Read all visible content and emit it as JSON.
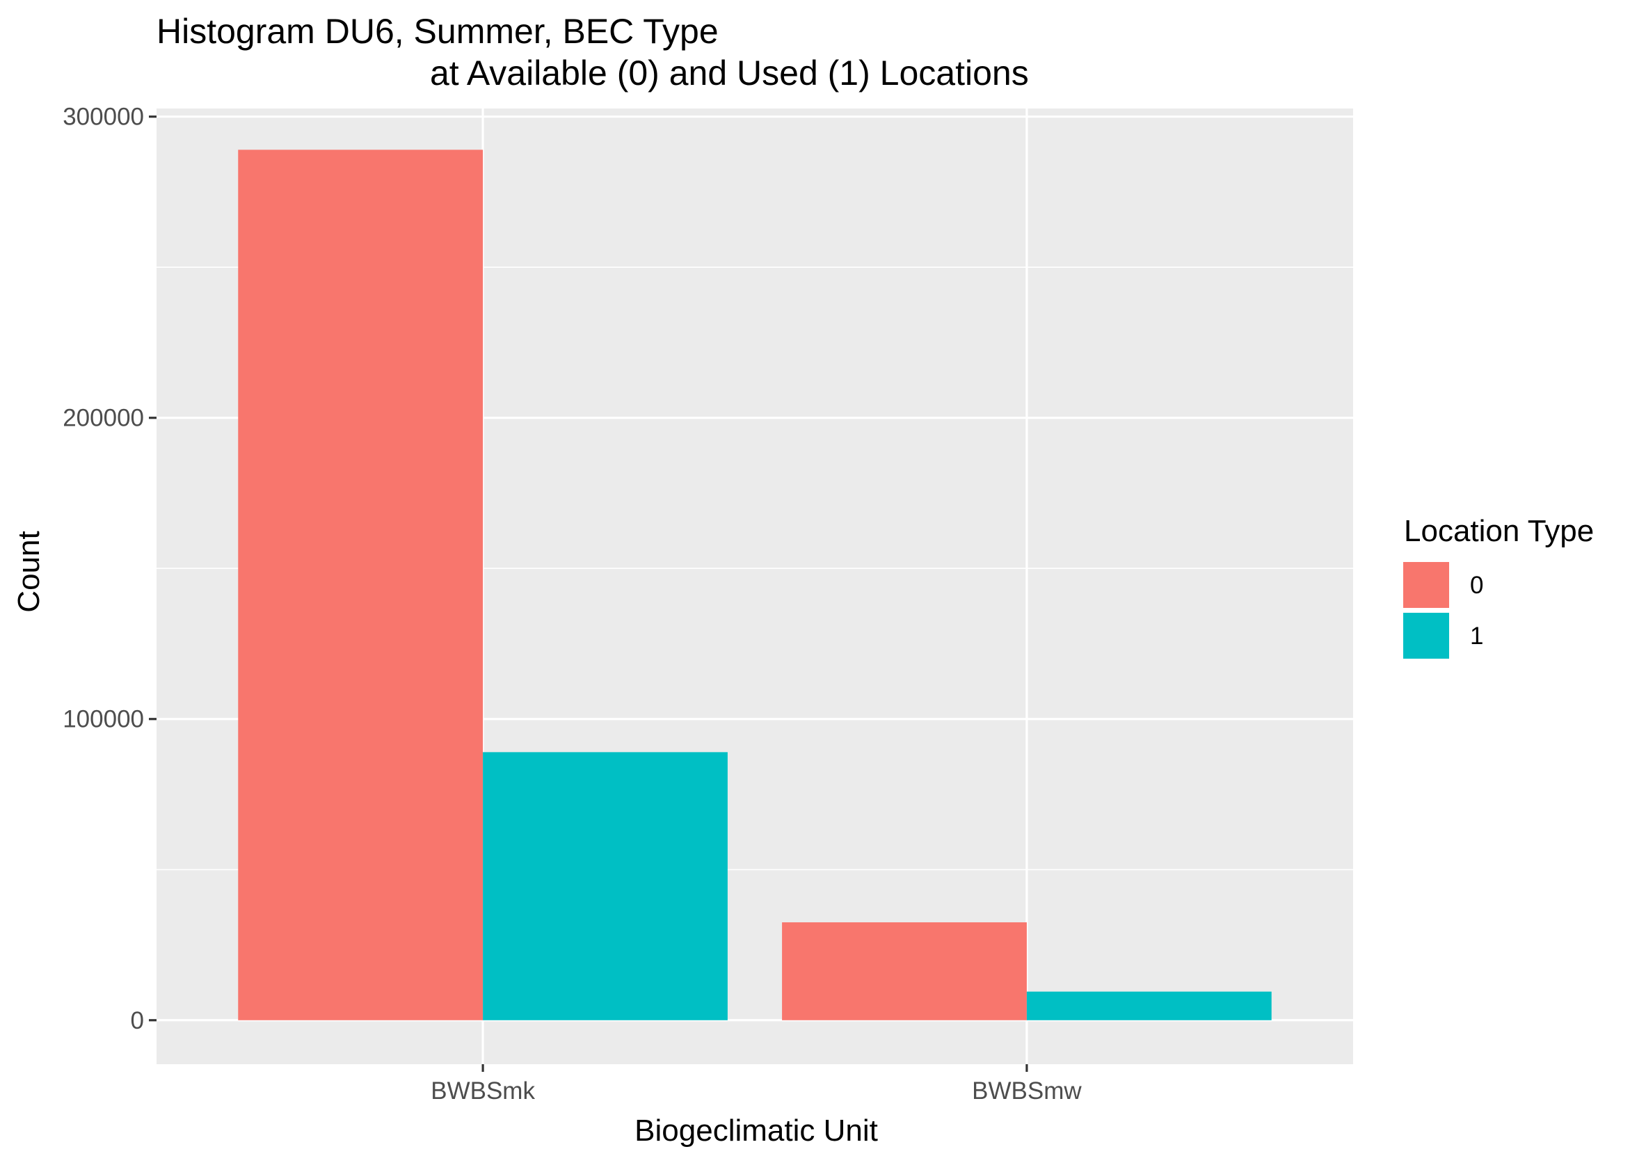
{
  "chart_data": {
    "type": "bar",
    "title_line1": "Histogram DU6, Summer, BEC Type",
    "title_line2": "at Available (0) and Used (1) Locations",
    "xlabel": "Biogeclimatic Unit",
    "ylabel": "Count",
    "categories": [
      "BWBSmk",
      "BWBSmw"
    ],
    "series": [
      {
        "name": "0",
        "values": [
          289000,
          32500
        ]
      },
      {
        "name": "1",
        "values": [
          89000,
          9500
        ]
      }
    ],
    "ylim": [
      -14600,
      302700
    ],
    "yticks": [
      0,
      100000,
      200000,
      300000
    ],
    "ytick_labels": [
      "0",
      "100000",
      "200000",
      "300000"
    ],
    "grid": true,
    "legend": {
      "title": "Location Type",
      "placement": "right"
    },
    "colors": {
      "series": [
        "#F8766D",
        "#00BFC4"
      ],
      "panel": "#EBEBEB",
      "grid": "#FFFFFF"
    }
  }
}
